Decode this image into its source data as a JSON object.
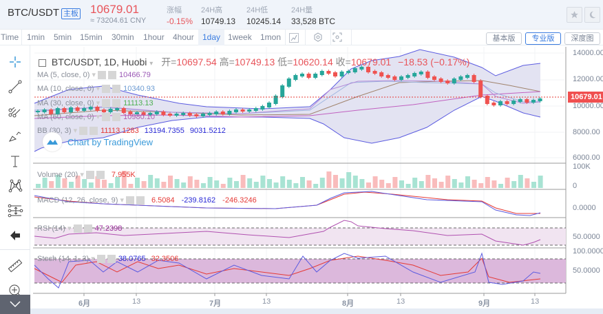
{
  "header": {
    "pair": "BTC/USDT",
    "board_badge": "主板",
    "last_price": "10679.01",
    "cny_price": "≈ 73204.61 CNY",
    "stats": [
      {
        "label": "涨幅",
        "value": "-0.15%",
        "color": "#e8545a"
      },
      {
        "label": "24H高",
        "value": "10749.13"
      },
      {
        "label": "24H低",
        "value": "10245.14"
      },
      {
        "label": "24H量",
        "value": "33,528 BTC"
      }
    ],
    "buttons": {
      "favorite": "star-icon",
      "theme": "moon-icon"
    }
  },
  "toolbar": {
    "intervals": [
      "Time",
      "1min",
      "5min",
      "15min",
      "30min",
      "1hour",
      "4hour",
      "1day",
      "1week",
      "1mon"
    ],
    "active_interval": "1day",
    "tools": [
      "indicator-icon",
      "settings-icon",
      "screenshot-icon"
    ],
    "views": [
      "基本版",
      "专业版",
      "深度图"
    ],
    "active_view": "专业版"
  },
  "sidebar": {
    "tools": [
      "crosshair-icon",
      "trend-line-icon",
      "pitchfork-icon",
      "brush-icon",
      "text-icon",
      "pattern-icon",
      "measure-icon",
      "back-arrow-icon",
      "ruler-icon",
      "zoom-in-icon"
    ],
    "collapse": "chevron-down-icon"
  },
  "chart": {
    "symbol_title": "BTC/USDT, 1D, Huobi",
    "ohlc": {
      "open_label": "开=",
      "open": "10697.54",
      "high_label": "高=",
      "high": "10749.13",
      "low_label": "低=",
      "low": "10620.14",
      "close_label": "收=",
      "close": "10679.01",
      "change": "−18.53 (−0.17%)"
    },
    "studies": [
      {
        "name": "MA (5, close, 0)",
        "value": "10466.79",
        "color": "#9b59b6"
      },
      {
        "name": "MA (10, close, 0)",
        "value": "10340.93",
        "color": "#6c9bd2"
      },
      {
        "name": "MA (30, close, 0)",
        "value": "11113.13",
        "color": "#4caf50"
      },
      {
        "name": "MA (60, close, 0)",
        "value": "10980.10",
        "color": "#b05fb0"
      },
      {
        "name": "BB (30, 3)",
        "values": [
          "11113.1283",
          "13194.7355",
          "9031.5212"
        ],
        "colors": [
          "#e53935",
          "#2929d6",
          "#2929d6"
        ]
      }
    ],
    "watermark": "Chart by TradingView",
    "price_axis": [
      "14000.00",
      "12000.00",
      "10000.00",
      "8000.00",
      "6000.00"
    ],
    "current_price_tag": "10679.01",
    "volume": {
      "name": "Volume (20)",
      "value": "7.955K",
      "axis": [
        "100K",
        "0"
      ]
    },
    "macd": {
      "name": "MACD (12, 26, close, 9)",
      "values": [
        "6.5084",
        "-239.8162",
        "-246.3246"
      ],
      "axis": [
        "0.0000"
      ]
    },
    "rsi": {
      "name": "RSI (14)",
      "value": "47.2398",
      "axis": [
        "50.0000"
      ]
    },
    "stoch": {
      "name": "Stoch (14, 1, 3)",
      "values": [
        "38.0765",
        "32.3506"
      ],
      "axis": [
        "100.0000",
        "50.0000"
      ]
    },
    "time_axis": [
      "6月",
      "13",
      "7月",
      "13",
      "8月",
      "13",
      "9月",
      "13"
    ]
  },
  "colors": {
    "up": "#26a69a",
    "down": "#ef5350",
    "accent": "#3a7ce0",
    "bb_fill": "#e3e3f2"
  }
}
